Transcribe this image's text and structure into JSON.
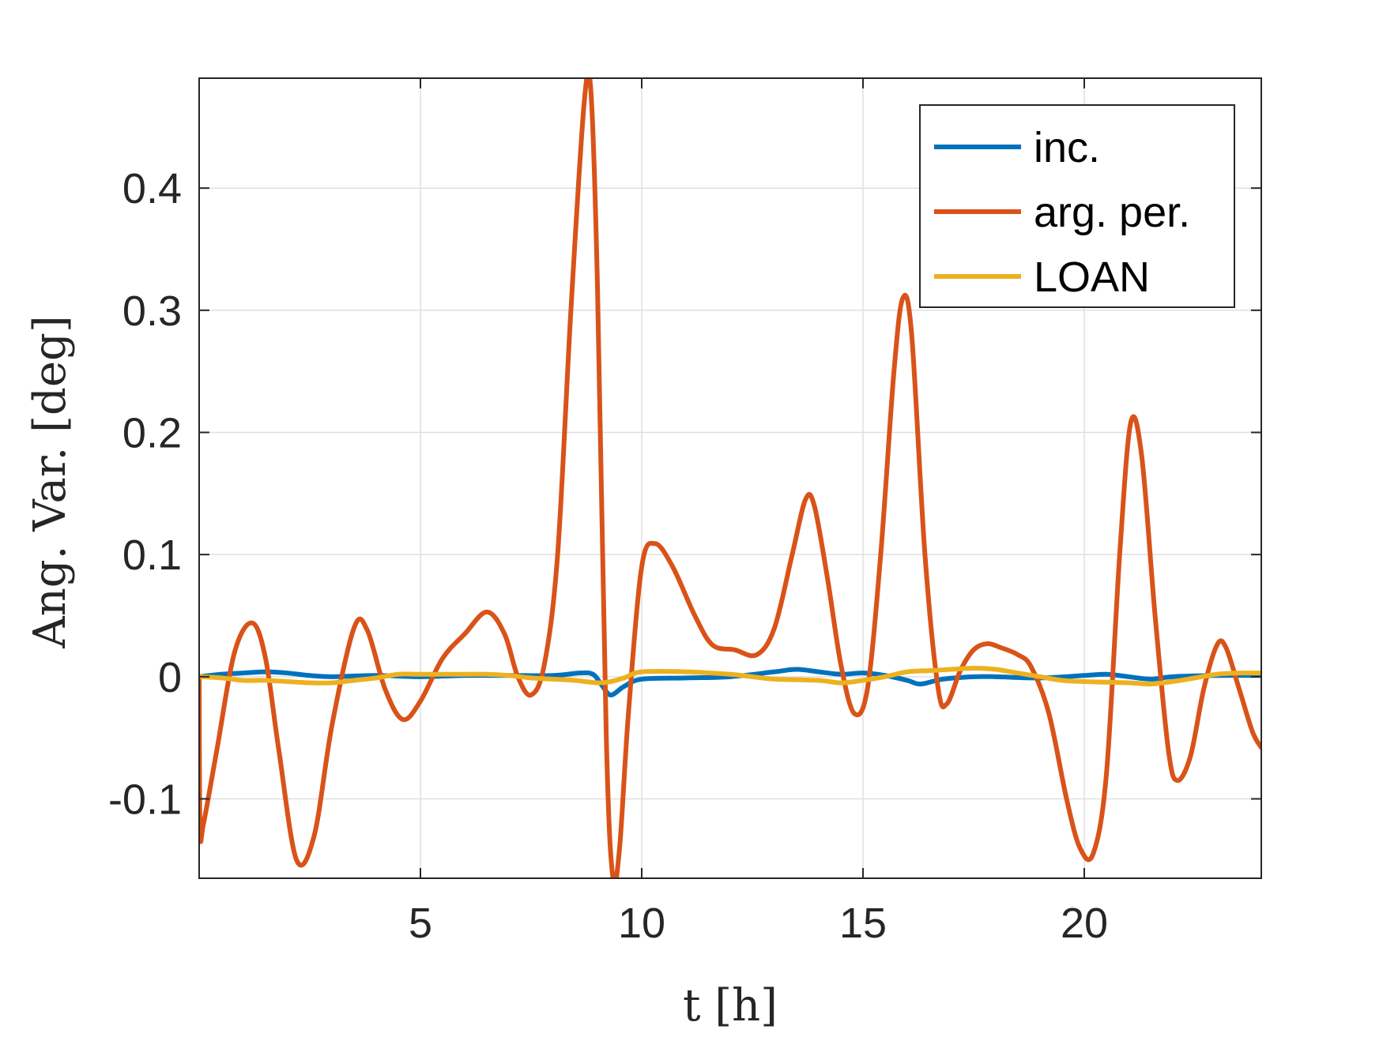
{
  "chart_data": {
    "type": "line",
    "title": "",
    "xlabel": "t [h]",
    "ylabel": "Ang. Var. [deg]",
    "xlim": [
      0,
      24
    ],
    "ylim": [
      -0.165,
      0.49
    ],
    "xticks": [
      5,
      10,
      15,
      20
    ],
    "xtick_labels": [
      "5",
      "10",
      "15",
      "20"
    ],
    "yticks": [
      -0.1,
      0,
      0.1,
      0.2,
      0.3,
      0.4
    ],
    "ytick_labels": [
      "-0.1",
      "0",
      "0.1",
      "0.2",
      "0.3",
      "0.4"
    ],
    "grid": true,
    "legend_position": "top-right",
    "series": [
      {
        "name": "inc.",
        "color": "#0072BD",
        "points": [
          [
            0,
            0
          ],
          [
            0.5,
            0.002
          ],
          [
            1,
            0.003
          ],
          [
            1.5,
            0.004
          ],
          [
            2,
            0.003
          ],
          [
            2.5,
            0.001
          ],
          [
            3,
            0
          ],
          [
            4,
            0.001
          ],
          [
            5,
            0
          ],
          [
            6,
            0.001
          ],
          [
            7,
            0.001
          ],
          [
            8,
            0.001
          ],
          [
            8.6,
            0.003
          ],
          [
            8.9,
            0.002
          ],
          [
            9.1,
            -0.007
          ],
          [
            9.3,
            -0.015
          ],
          [
            9.6,
            -0.008
          ],
          [
            10,
            -0.002
          ],
          [
            11,
            -0.001
          ],
          [
            12,
            0
          ],
          [
            13,
            0.004
          ],
          [
            13.5,
            0.006
          ],
          [
            14,
            0.004
          ],
          [
            14.5,
            0.002
          ],
          [
            15,
            0.003
          ],
          [
            15.5,
            0.001
          ],
          [
            16,
            -0.003
          ],
          [
            16.3,
            -0.006
          ],
          [
            16.8,
            -0.002
          ],
          [
            17.5,
            0
          ],
          [
            18,
            0
          ],
          [
            19,
            -0.001
          ],
          [
            20,
            0.001
          ],
          [
            20.5,
            0.002
          ],
          [
            21,
            0
          ],
          [
            21.5,
            -0.002
          ],
          [
            22,
            0
          ],
          [
            23,
            0.001
          ],
          [
            24,
            0.001
          ]
        ]
      },
      {
        "name": "arg. per.",
        "color": "#D95319",
        "points": [
          [
            0,
            0
          ],
          [
            0.02,
            -0.125
          ],
          [
            0.1,
            -0.12
          ],
          [
            0.4,
            -0.06
          ],
          [
            0.8,
            0.02
          ],
          [
            1.2,
            0.044
          ],
          [
            1.5,
            0.015
          ],
          [
            1.8,
            -0.06
          ],
          [
            2.2,
            -0.15
          ],
          [
            2.6,
            -0.13
          ],
          [
            3,
            -0.04
          ],
          [
            3.5,
            0.04
          ],
          [
            3.8,
            0.038
          ],
          [
            4.2,
            -0.01
          ],
          [
            4.6,
            -0.035
          ],
          [
            5,
            -0.02
          ],
          [
            5.5,
            0.015
          ],
          [
            6,
            0.035
          ],
          [
            6.5,
            0.053
          ],
          [
            6.9,
            0.035
          ],
          [
            7.2,
            0
          ],
          [
            7.5,
            -0.015
          ],
          [
            7.8,
            0.01
          ],
          [
            8.1,
            0.1
          ],
          [
            8.4,
            0.3
          ],
          [
            8.7,
            0.47
          ],
          [
            8.85,
            0.48
          ],
          [
            9,
            0.32
          ],
          [
            9.2,
            -0.05
          ],
          [
            9.35,
            -0.165
          ],
          [
            9.5,
            -0.14
          ],
          [
            9.7,
            -0.03
          ],
          [
            10,
            0.09
          ],
          [
            10.3,
            0.109
          ],
          [
            10.7,
            0.09
          ],
          [
            11.2,
            0.05
          ],
          [
            11.6,
            0.026
          ],
          [
            12.1,
            0.022
          ],
          [
            12.6,
            0.018
          ],
          [
            13,
            0.04
          ],
          [
            13.4,
            0.1
          ],
          [
            13.7,
            0.145
          ],
          [
            13.9,
            0.14
          ],
          [
            14.2,
            0.08
          ],
          [
            14.5,
            0.01
          ],
          [
            14.8,
            -0.03
          ],
          [
            15.1,
            -0.01
          ],
          [
            15.4,
            0.1
          ],
          [
            15.7,
            0.25
          ],
          [
            15.9,
            0.31
          ],
          [
            16.1,
            0.28
          ],
          [
            16.4,
            0.1
          ],
          [
            16.7,
            -0.01
          ],
          [
            16.9,
            -0.022
          ],
          [
            17.2,
            0.005
          ],
          [
            17.5,
            0.022
          ],
          [
            17.8,
            0.027
          ],
          [
            18.1,
            0.024
          ],
          [
            18.5,
            0.018
          ],
          [
            18.8,
            0.008
          ],
          [
            19.2,
            -0.03
          ],
          [
            19.6,
            -0.1
          ],
          [
            19.9,
            -0.14
          ],
          [
            20.2,
            -0.145
          ],
          [
            20.5,
            -0.08
          ],
          [
            20.8,
            0.1
          ],
          [
            21.05,
            0.208
          ],
          [
            21.3,
            0.18
          ],
          [
            21.6,
            0.05
          ],
          [
            21.9,
            -0.06
          ],
          [
            22.1,
            -0.085
          ],
          [
            22.4,
            -0.065
          ],
          [
            22.7,
            -0.01
          ],
          [
            23,
            0.026
          ],
          [
            23.2,
            0.024
          ],
          [
            23.5,
            -0.01
          ],
          [
            23.8,
            -0.045
          ],
          [
            24,
            -0.058
          ]
        ]
      },
      {
        "name": "LOAN",
        "color": "#EDB120",
        "points": [
          [
            0,
            0
          ],
          [
            0.5,
            -0.001
          ],
          [
            1,
            -0.003
          ],
          [
            1.5,
            -0.003
          ],
          [
            2,
            -0.004
          ],
          [
            2.5,
            -0.005
          ],
          [
            3,
            -0.005
          ],
          [
            3.5,
            -0.003
          ],
          [
            4,
            -0.001
          ],
          [
            4.5,
            0.002
          ],
          [
            5,
            0.002
          ],
          [
            6,
            0.002
          ],
          [
            6.5,
            0.002
          ],
          [
            7,
            0.001
          ],
          [
            7.5,
            -0.001
          ],
          [
            8,
            -0.002
          ],
          [
            8.5,
            -0.003
          ],
          [
            9,
            -0.005
          ],
          [
            9.3,
            -0.004
          ],
          [
            9.6,
            -0.001
          ],
          [
            10,
            0.004
          ],
          [
            11,
            0.004
          ],
          [
            12,
            0.002
          ],
          [
            12.5,
            0
          ],
          [
            13,
            -0.002
          ],
          [
            14,
            -0.003
          ],
          [
            14.5,
            -0.005
          ],
          [
            15,
            -0.003
          ],
          [
            15.5,
            0
          ],
          [
            16,
            0.004
          ],
          [
            16.5,
            0.005
          ],
          [
            17,
            0.006
          ],
          [
            17.5,
            0.007
          ],
          [
            18,
            0.006
          ],
          [
            18.5,
            0.003
          ],
          [
            19,
            0
          ],
          [
            19.5,
            -0.003
          ],
          [
            20,
            -0.004
          ],
          [
            21,
            -0.005
          ],
          [
            21.5,
            -0.006
          ],
          [
            22,
            -0.004
          ],
          [
            22.5,
            -0.001
          ],
          [
            23,
            0.002
          ],
          [
            23.5,
            0.003
          ],
          [
            24,
            0.003
          ]
        ]
      }
    ]
  }
}
